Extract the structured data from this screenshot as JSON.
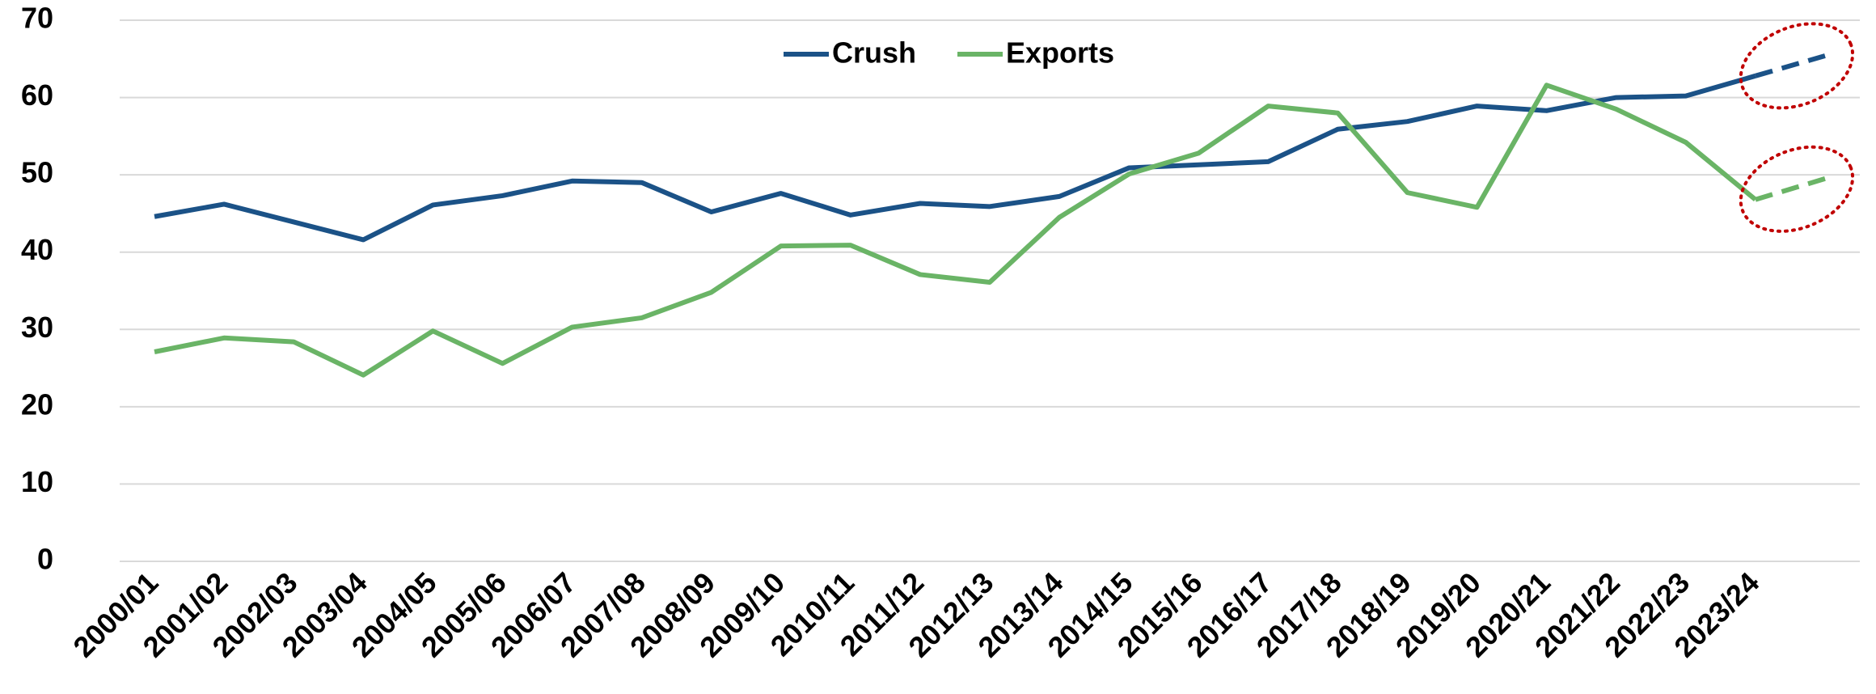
{
  "chart_data": {
    "type": "line",
    "categories": [
      "2000/01",
      "2001/02",
      "2002/03",
      "2003/04",
      "2004/05",
      "2005/06",
      "2006/07",
      "2007/08",
      "2008/09",
      "2009/10",
      "2010/11",
      "2011/12",
      "2012/13",
      "2013/14",
      "2014/15",
      "2015/16",
      "2016/17",
      "2017/18",
      "2018/19",
      "2019/20",
      "2020/21",
      "2021/22",
      "2022/23",
      "2023/24",
      null
    ],
    "series": [
      {
        "name": "Crush",
        "color": "#1b5287",
        "values": [
          44.6,
          46.2,
          43.9,
          41.6,
          46.1,
          47.3,
          49.2,
          49.0,
          45.2,
          47.6,
          44.8,
          46.3,
          45.9,
          47.2,
          50.9,
          51.3,
          51.7,
          55.9,
          56.9,
          58.9,
          58.3,
          60.0,
          60.2,
          62.8,
          65.4
        ]
      },
      {
        "name": "Exports",
        "color": "#6ab466",
        "values": [
          27.1,
          28.9,
          28.4,
          24.1,
          29.8,
          25.6,
          30.3,
          31.5,
          34.8,
          40.8,
          40.9,
          37.1,
          36.1,
          44.5,
          50.1,
          52.8,
          58.9,
          58.0,
          47.7,
          45.8,
          61.6,
          58.5,
          54.2,
          46.8,
          49.5
        ]
      }
    ],
    "dash_from": 23,
    "ylim": [
      0,
      70
    ],
    "yticks": [
      0,
      10,
      20,
      30,
      40,
      50,
      60,
      70
    ],
    "grid": true,
    "legend": "top"
  }
}
